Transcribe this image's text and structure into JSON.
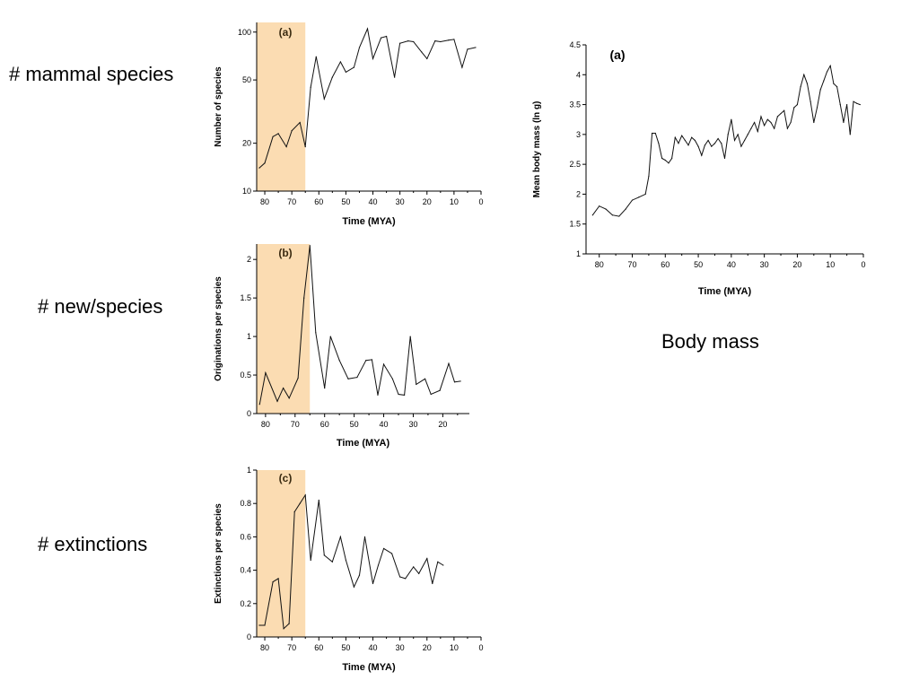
{
  "captions": {
    "species": "# mammal species",
    "originations": "# new/species",
    "extinctions": "# extinctions",
    "body_mass": "Body mass"
  },
  "colors": {
    "kpg_band": "#fbdcb2",
    "line": "#111111"
  },
  "chart_data": [
    {
      "id": "species",
      "type": "line",
      "panel_label": "(a)",
      "xlabel": "Time (MYA)",
      "ylabel": "Number of species",
      "y_scale": "log",
      "xlim": [
        83,
        0
      ],
      "ylim": [
        10,
        115
      ],
      "x_ticks": [
        "80",
        "70",
        "60",
        "50",
        "40",
        "30",
        "20",
        "10",
        "0"
      ],
      "y_ticks": [
        "100",
        "50",
        "20",
        "10"
      ],
      "highlight_range": [
        83,
        65
      ],
      "x": [
        82,
        80,
        77,
        75,
        72,
        70,
        67,
        65,
        63,
        61,
        58,
        55,
        52,
        50,
        47,
        45,
        42,
        40,
        37,
        35,
        32,
        30,
        27,
        25,
        22,
        20,
        17,
        15,
        12,
        10,
        7,
        5,
        2
      ],
      "y": [
        14,
        15,
        22,
        23,
        19,
        24,
        27,
        19,
        45,
        70,
        38,
        52,
        65,
        56,
        60,
        80,
        105,
        68,
        92,
        94,
        52,
        85,
        88,
        87,
        75,
        68,
        88,
        87,
        89,
        90,
        60,
        78,
        80
      ]
    },
    {
      "id": "originations",
      "type": "line",
      "panel_label": "(b)",
      "xlabel": "Time (MYA)",
      "ylabel": "Originations per species",
      "xlim": [
        83,
        11
      ],
      "ylim": [
        0,
        2.2
      ],
      "x_ticks": [
        "80",
        "70",
        "60",
        "50",
        "40",
        "30",
        "20"
      ],
      "y_ticks": [
        "2",
        "1.5",
        "1",
        "0.5",
        "0"
      ],
      "highlight_range": [
        83,
        65
      ],
      "x": [
        82,
        80,
        76,
        74,
        72,
        69,
        67,
        65,
        63,
        60,
        58,
        55,
        52,
        49,
        46,
        44,
        42,
        40,
        37,
        35,
        33,
        31,
        29,
        26,
        24,
        21,
        18,
        16,
        14
      ],
      "y": [
        0.12,
        0.53,
        0.16,
        0.33,
        0.2,
        0.46,
        1.5,
        2.18,
        1.05,
        0.33,
        1.0,
        0.69,
        0.45,
        0.47,
        0.69,
        0.7,
        0.24,
        0.64,
        0.45,
        0.25,
        0.24,
        1.0,
        0.38,
        0.45,
        0.25,
        0.3,
        0.65,
        0.41,
        0.42
      ]
    },
    {
      "id": "extinctions",
      "type": "line",
      "panel_label": "(c)",
      "xlabel": "Time (MYA)",
      "ylabel": "Extinctions per species",
      "xlim": [
        83,
        0
      ],
      "ylim": [
        0,
        1
      ],
      "x_ticks": [
        "80",
        "70",
        "60",
        "50",
        "40",
        "30",
        "20",
        "10",
        "0"
      ],
      "y_ticks": [
        "1",
        "0.8",
        "0.6",
        "0.4",
        "0.2",
        "0"
      ],
      "highlight_range": [
        83,
        65
      ],
      "x": [
        82,
        80,
        77,
        75,
        73,
        71,
        69,
        67,
        65,
        63,
        60,
        58,
        55,
        52,
        50,
        47,
        45,
        43,
        40,
        38,
        36,
        33,
        30,
        28,
        25,
        23,
        20,
        18,
        16,
        14
      ],
      "y": [
        0.07,
        0.07,
        0.33,
        0.35,
        0.05,
        0.08,
        0.75,
        0.8,
        0.85,
        0.46,
        0.82,
        0.49,
        0.45,
        0.6,
        0.46,
        0.3,
        0.37,
        0.6,
        0.32,
        0.43,
        0.53,
        0.5,
        0.36,
        0.35,
        0.42,
        0.38,
        0.47,
        0.32,
        0.45,
        0.43
      ]
    },
    {
      "id": "body_mass",
      "type": "line",
      "panel_label": "(a)",
      "xlabel": "Time (MYA)",
      "ylabel": "Mean body mass (ln g)",
      "xlim": [
        84,
        0
      ],
      "ylim": [
        1,
        4.5
      ],
      "x_ticks": [
        "80",
        "70",
        "60",
        "50",
        "40",
        "30",
        "20",
        "10",
        "0"
      ],
      "y_ticks": [
        "4.5",
        "4",
        "3.5",
        "3",
        "2.5",
        "2",
        "1.5",
        "1"
      ],
      "x": [
        82,
        80,
        78,
        76,
        74,
        72,
        70,
        68,
        66,
        65,
        64,
        63,
        62,
        61,
        60,
        59,
        58,
        57,
        56,
        55,
        54,
        53,
        52,
        51,
        50,
        49,
        48,
        47,
        46,
        45,
        44,
        43,
        42,
        41,
        40,
        39,
        38,
        37,
        36,
        35,
        34,
        33,
        32,
        31,
        30,
        29,
        28,
        27,
        26,
        25,
        24,
        23,
        22,
        21,
        20,
        19,
        18,
        17,
        16,
        15,
        14,
        13,
        12,
        11,
        10,
        9,
        8,
        7,
        6,
        5,
        4,
        3,
        2,
        1
      ],
      "y": [
        1.65,
        1.8,
        1.75,
        1.65,
        1.63,
        1.75,
        1.9,
        1.95,
        2.0,
        2.3,
        3.02,
        3.02,
        2.85,
        2.6,
        2.57,
        2.52,
        2.6,
        2.95,
        2.85,
        2.98,
        2.9,
        2.82,
        2.95,
        2.9,
        2.8,
        2.65,
        2.82,
        2.9,
        2.8,
        2.85,
        2.93,
        2.85,
        2.6,
        3.0,
        3.25,
        2.9,
        3.0,
        2.8,
        2.9,
        3.0,
        3.1,
        3.2,
        3.05,
        3.3,
        3.15,
        3.25,
        3.2,
        3.1,
        3.3,
        3.35,
        3.4,
        3.1,
        3.2,
        3.45,
        3.5,
        3.8,
        4.0,
        3.85,
        3.55,
        3.2,
        3.45,
        3.75,
        3.9,
        4.05,
        4.15,
        3.85,
        3.8,
        3.5,
        3.2,
        3.5,
        3.0,
        3.55,
        3.52,
        3.5
      ]
    }
  ]
}
